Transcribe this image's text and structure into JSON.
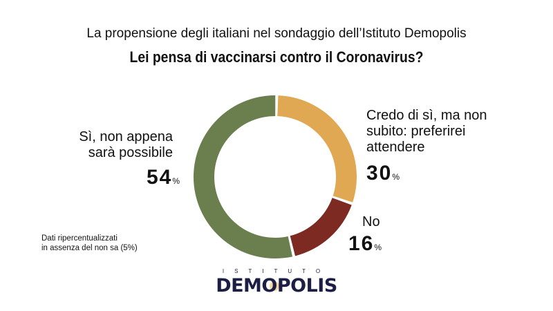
{
  "chart_data": {
    "type": "pie",
    "subtitle": "La propensione degli italiani nel sondaggio dell’Istituto Demopolis",
    "title": "Lei pensa di vaccinarsi contro il Coronavirus?",
    "slices": [
      {
        "label": "Credo di sì, ma non subito: preferirei attendere",
        "value": 30,
        "display": "30",
        "color": "#e0a853"
      },
      {
        "label": "No",
        "value": 16,
        "display": "16",
        "color": "#7c2a22"
      },
      {
        "label": "Sì, non appena sarà possibile",
        "value": 54,
        "display": "54",
        "color": "#6a7f4d"
      }
    ],
    "unit": "%",
    "note": [
      "Dati ripercentualizzati",
      "in assenza del non sa (5%)"
    ]
  },
  "logo": {
    "top": "ISTITUTO",
    "main": "DEMOPOLIS"
  }
}
